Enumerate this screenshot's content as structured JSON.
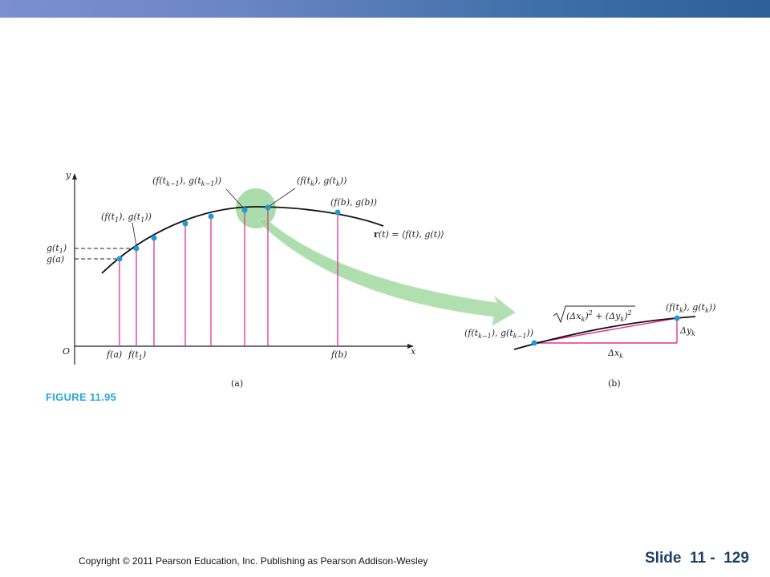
{
  "header": {
    "bar_color_start": "#7b8fcf",
    "bar_color_end": "#2d5f98"
  },
  "figure": {
    "label": "FIGURE 11.95",
    "panel_a": {
      "caption": "(a)",
      "axis_x": "x",
      "axis_y": "y",
      "origin": "O",
      "y_tick_1": "g(t",
      "y_tick_1_sub": "1",
      "y_tick_1_close": ")",
      "y_tick_2": "g(a)",
      "x_tick_1": "f(a)",
      "x_tick_2": "f(t",
      "x_tick_2_sub": "1",
      "x_tick_2_close": ")",
      "x_tick_3": "f(b)",
      "pt_t1": "(f(t",
      "pt_t1_sub": "1",
      "pt_t1_mid": "), g(t",
      "pt_t1_sub2": "1",
      "pt_t1_close": "))",
      "pt_tk1": "(f(t",
      "pt_tk1_sub": "k−1",
      "pt_tk1_mid": "), g(t",
      "pt_tk1_sub2": "k−1",
      "pt_tk1_close": "))",
      "pt_tk": "(f(t",
      "pt_tk_sub": "k",
      "pt_tk_mid": "), g(t",
      "pt_tk_sub2": "k",
      "pt_tk_close": "))",
      "pt_b": "(f(b), g(b))",
      "curve_label_r": "r",
      "curve_label_rest": "(t) = ⟨f(t), g(t)⟩"
    },
    "panel_b": {
      "caption": "(b)",
      "pt_tk": "(f(t",
      "pt_tk_sub": "k",
      "pt_tk_mid": "), g(t",
      "pt_tk_sub2": "k",
      "pt_tk_close": "))",
      "pt_tk1": "(f(t",
      "pt_tk1_sub": "k−1",
      "pt_tk1_mid": "), g(t",
      "pt_tk1_sub2": "k−1",
      "pt_tk1_close": "))",
      "sqrt_a": "(Δx",
      "sqrt_a_sub": "k",
      "sqrt_a_close": ")",
      "sqrt_a_sup": "2",
      "sqrt_plus": " + (Δy",
      "sqrt_b_sub": "k",
      "sqrt_b_close": ")",
      "sqrt_b_sup": "2",
      "dx": "Δx",
      "dx_sub": "k",
      "dy": "Δy",
      "dy_sub": "k"
    },
    "colors": {
      "curve": "#111111",
      "segments": "#e0338e",
      "points": "#1e9ad6",
      "highlight": "#8fd08f",
      "label": "#2aa6d8"
    }
  },
  "footer": {
    "copyright": "Copyright © 2011 Pearson Education, Inc.  Publishing as Pearson Addison-Wesley",
    "slide": "Slide  11 -  129"
  }
}
